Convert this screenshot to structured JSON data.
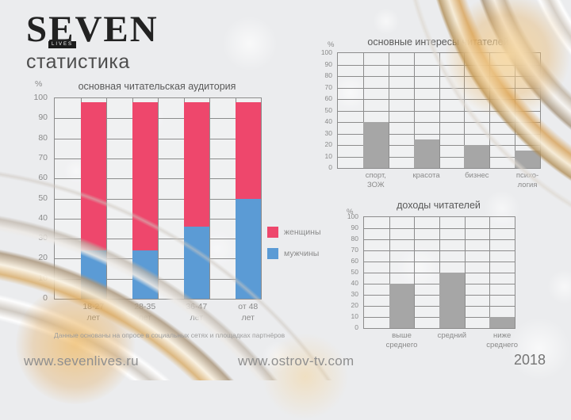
{
  "page": {
    "logo": {
      "name": "SEVEN",
      "badge": "LIVES",
      "subtitle": "статистика"
    },
    "footnote": "Данные основаны на опросе в социальных сетях и площадках партнёров",
    "footer": {
      "site_left": "www.sevenlives.ru",
      "site_center": "www.ostrov-tv.com",
      "year": "2018"
    }
  },
  "chart_data": [
    {
      "type": "bar",
      "variant": "stacked",
      "title": "основная читательская аудитория",
      "unit": "%",
      "ylim": [
        0,
        100
      ],
      "grid_step": 10,
      "columns": 8,
      "grid": "on",
      "legend_position": "right",
      "categories": [
        [
          "18-27",
          "лет"
        ],
        [
          "28-35",
          "лет"
        ],
        [
          "36-47",
          "лет"
        ],
        [
          "от 48",
          "лет"
        ]
      ],
      "series": [
        {
          "name": "женщины",
          "color": "#ee476c",
          "values": [
            74,
            74,
            62,
            48
          ]
        },
        {
          "name": "мужчины",
          "color": "#5b9bd5",
          "values": [
            24,
            24,
            36,
            50
          ]
        }
      ]
    },
    {
      "type": "bar",
      "variant": "simple",
      "title": "основные интересы читателей",
      "unit": "%",
      "ylim": [
        0,
        100
      ],
      "grid_step": 10,
      "columns": 8,
      "grid": "on",
      "bar_color": "#a6a6a6",
      "categories": [
        [
          "спорт,",
          "ЗОЖ"
        ],
        [
          "красота"
        ],
        [
          "бизнес"
        ],
        [
          "психо-",
          "логия"
        ]
      ],
      "values": [
        40,
        25,
        20,
        15
      ]
    },
    {
      "type": "bar",
      "variant": "simple",
      "title": "доходы читателей",
      "unit": "%",
      "ylim": [
        0,
        100
      ],
      "grid_step": 10,
      "columns": 6,
      "grid": "on",
      "bar_color": "#a6a6a6",
      "categories": [
        [
          "выше",
          "среднего"
        ],
        [
          "средний"
        ],
        [
          "ниже",
          "среднего"
        ]
      ],
      "values": [
        40,
        50,
        10
      ]
    }
  ]
}
